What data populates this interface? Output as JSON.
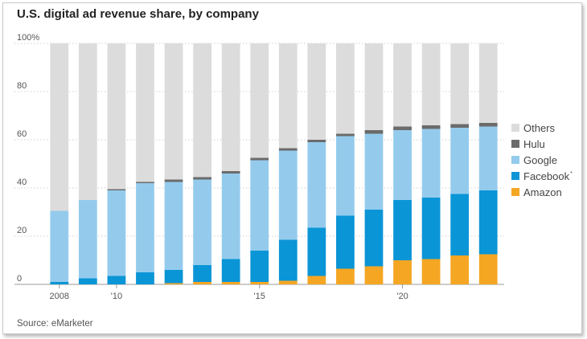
{
  "title": "U.S. digital ad revenue share, by company",
  "source": "Source: eMarketer",
  "chart_data": {
    "type": "bar",
    "stacked": true,
    "title": "U.S. digital ad revenue share, by company",
    "xlabel": "",
    "ylabel": "",
    "ylim": [
      0,
      100
    ],
    "y_ticks": [
      "100%",
      "80",
      "60",
      "40",
      "20",
      "0"
    ],
    "x": [
      2008,
      2009,
      2010,
      2011,
      2012,
      2013,
      2014,
      2015,
      2016,
      2017,
      2018,
      2019,
      2020,
      2021,
      2022,
      2023
    ],
    "x_tick_labels": [
      {
        "year": 2008,
        "label": "2008"
      },
      {
        "year": 2010,
        "label": "'10"
      },
      {
        "year": 2015,
        "label": "'15"
      },
      {
        "year": 2020,
        "label": "'20"
      }
    ],
    "series": [
      {
        "name": "Amazon",
        "color": "#f5a623",
        "values": [
          0,
          0,
          0,
          0,
          0.5,
          1,
          1,
          1,
          1.5,
          3.5,
          6.5,
          7.5,
          10,
          10.5,
          12,
          12.5
        ]
      },
      {
        "name": "Facebook",
        "color": "#0a95d6",
        "values": [
          1,
          2.5,
          3.5,
          5,
          5.5,
          7,
          9.5,
          13,
          17,
          20,
          22,
          23.5,
          25,
          25.5,
          25.5,
          26.5
        ]
      },
      {
        "name": "Google",
        "color": "#94cbed",
        "values": [
          29.5,
          32.5,
          35.5,
          37,
          36.5,
          35.5,
          35.5,
          37.5,
          37,
          35.5,
          33,
          31.5,
          29,
          28.5,
          27.5,
          26.5
        ]
      },
      {
        "name": "Hulu",
        "color": "#6b6b6b",
        "values": [
          0,
          0,
          0.5,
          0.5,
          1,
          1,
          1,
          1,
          1,
          1,
          1,
          1.5,
          1.5,
          1.5,
          1.5,
          1.5
        ]
      },
      {
        "name": "Others",
        "color": "#dcdcdc",
        "values": [
          69.5,
          65,
          60.5,
          57.5,
          56.5,
          55.5,
          53,
          47.5,
          43.5,
          40,
          37.5,
          36,
          34.5,
          34,
          33.5,
          33
        ]
      }
    ],
    "legend": {
      "placement": "right",
      "entries": [
        {
          "label": "Others",
          "color": "#dcdcdc"
        },
        {
          "label": "Hulu",
          "color": "#6b6b6b"
        },
        {
          "label": "Google",
          "color": "#94cbed"
        },
        {
          "label": "Facebook",
          "color": "#0a95d6",
          "superscript": "*"
        },
        {
          "label": "Amazon",
          "color": "#f5a623"
        }
      ]
    },
    "grid": true
  }
}
